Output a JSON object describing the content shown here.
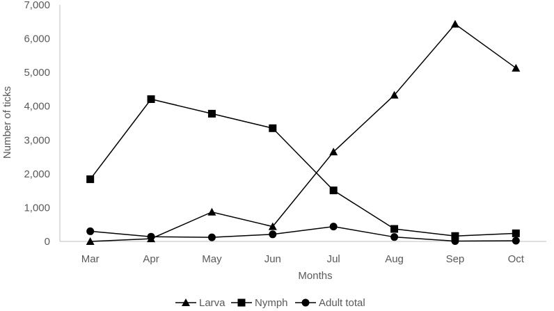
{
  "chart_data": {
    "type": "line",
    "categories": [
      "Mar",
      "Apr",
      "May",
      "Jun",
      "Jul",
      "Aug",
      "Sep",
      "Oct"
    ],
    "series": [
      {
        "name": "Larva",
        "marker": "triangle",
        "values": [
          0,
          80,
          870,
          440,
          2650,
          4330,
          6430,
          5130
        ]
      },
      {
        "name": "Nymph",
        "marker": "square",
        "values": [
          1840,
          4210,
          3780,
          3350,
          1510,
          370,
          160,
          240
        ]
      },
      {
        "name": "Adult total",
        "marker": "circle",
        "values": [
          300,
          140,
          120,
          210,
          440,
          130,
          10,
          20
        ]
      }
    ],
    "xlabel": "Months",
    "ylabel": "Number of ticks",
    "ylim": [
      0,
      7000
    ],
    "yticks": [
      0,
      1000,
      2000,
      3000,
      4000,
      5000,
      6000,
      7000
    ],
    "ytick_labels": [
      "0",
      "1,000",
      "2,000",
      "3,000",
      "4,000",
      "5,000",
      "6,000",
      "7,000"
    ],
    "grid": false,
    "legend_position": "bottom",
    "line_color": "#000000",
    "axis_color": "#595959"
  }
}
